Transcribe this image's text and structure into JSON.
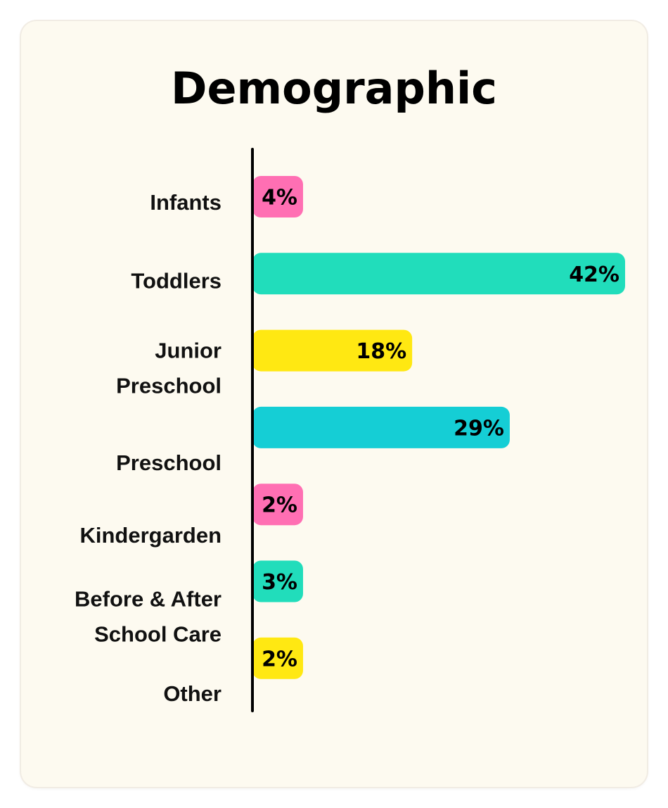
{
  "chart_data": {
    "type": "bar",
    "orientation": "horizontal",
    "title": "Demographic",
    "categories": [
      [
        "Infants"
      ],
      [
        "Toddlers"
      ],
      [
        "Junior",
        "Preschool"
      ],
      [
        "Preschool"
      ],
      [
        "Kindergarden"
      ],
      [
        "Before & After",
        "School Care"
      ],
      [
        "Other"
      ]
    ],
    "values": [
      4,
      42,
      18,
      29,
      2,
      3,
      2
    ],
    "value_labels": [
      "4%",
      "42%",
      "18%",
      "29%",
      "2%",
      "3%",
      "2%"
    ],
    "colors": [
      "#ff6fb3",
      "#21ddbb",
      "#ffe812",
      "#15ced5",
      "#ff6fb3",
      "#21ddbb",
      "#ffe812"
    ],
    "xlim": [
      0,
      42
    ],
    "unit": "%",
    "grid": false,
    "legend": "none"
  }
}
